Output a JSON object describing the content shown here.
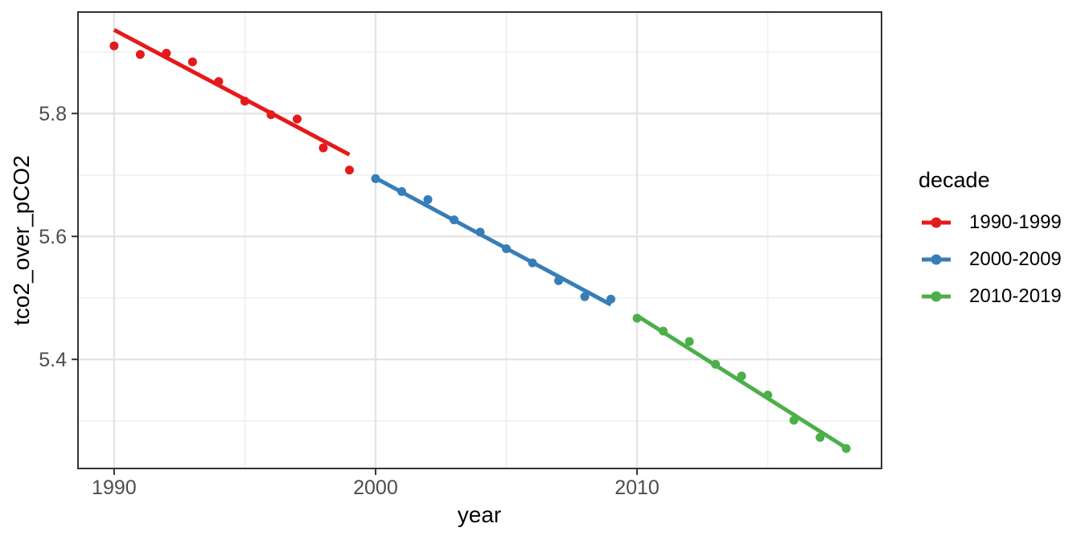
{
  "theme": {
    "background": "#FFFFFF",
    "panel_background": "#FFFFFF",
    "panel_border": "#333333",
    "grid_major_color": "#E3E3E3",
    "grid_minor_color": "#F0F0F0",
    "tick_color": "#333333",
    "axis_text_color": "#4D4D4D",
    "title_color": "#000000"
  },
  "chart_data": {
    "type": "scatter",
    "title": "",
    "xlabel": "year",
    "ylabel": "tco2_over_pCO2",
    "xlim": [
      1988.62,
      2019.35
    ],
    "ylim": [
      5.2225,
      5.965
    ],
    "grid": true,
    "x_major_ticks": [
      1990,
      2000,
      2010
    ],
    "x_tick_labels": [
      "1990",
      "2000",
      "2010"
    ],
    "x_minor_ticks": [
      1995,
      2005,
      2015
    ],
    "y_major_ticks": [
      5.4,
      5.6,
      5.8
    ],
    "y_tick_labels": [
      "5.4",
      "5.6",
      "5.8"
    ],
    "y_minor_ticks": [
      5.3,
      5.5,
      5.7,
      5.9
    ],
    "legend": {
      "title": "decade",
      "position": "right",
      "entries": [
        "1990-1999",
        "2000-2009",
        "2010-2019"
      ]
    },
    "series": [
      {
        "name": "1990-1999",
        "color": "#E41A1C",
        "x": [
          1990,
          1991,
          1992,
          1993,
          1994,
          1995,
          1996,
          1997,
          1998,
          1999
        ],
        "y": [
          5.91,
          5.896,
          5.898,
          5.884,
          5.852,
          5.82,
          5.798,
          5.791,
          5.744,
          5.708
        ],
        "trend": {
          "x": [
            1990,
            1999
          ],
          "y": [
            5.936,
            5.733
          ]
        }
      },
      {
        "name": "2000-2009",
        "color": "#377EB8",
        "x": [
          2000,
          2001,
          2002,
          2003,
          2004,
          2005,
          2006,
          2007,
          2008,
          2009
        ],
        "y": [
          5.694,
          5.673,
          5.66,
          5.627,
          5.607,
          5.58,
          5.557,
          5.528,
          5.502,
          5.498
        ],
        "trend": {
          "x": [
            2000,
            2009
          ],
          "y": [
            5.695,
            5.489
          ]
        }
      },
      {
        "name": "2010-2019",
        "color": "#4DAF4A",
        "x": [
          2010,
          2011,
          2012,
          2013,
          2014,
          2015,
          2016,
          2017,
          2018
        ],
        "y": [
          5.467,
          5.446,
          5.429,
          5.392,
          5.373,
          5.342,
          5.301,
          5.273,
          5.255
        ],
        "trend": {
          "x": [
            2010,
            2018
          ],
          "y": [
            5.471,
            5.256
          ]
        }
      }
    ]
  }
}
